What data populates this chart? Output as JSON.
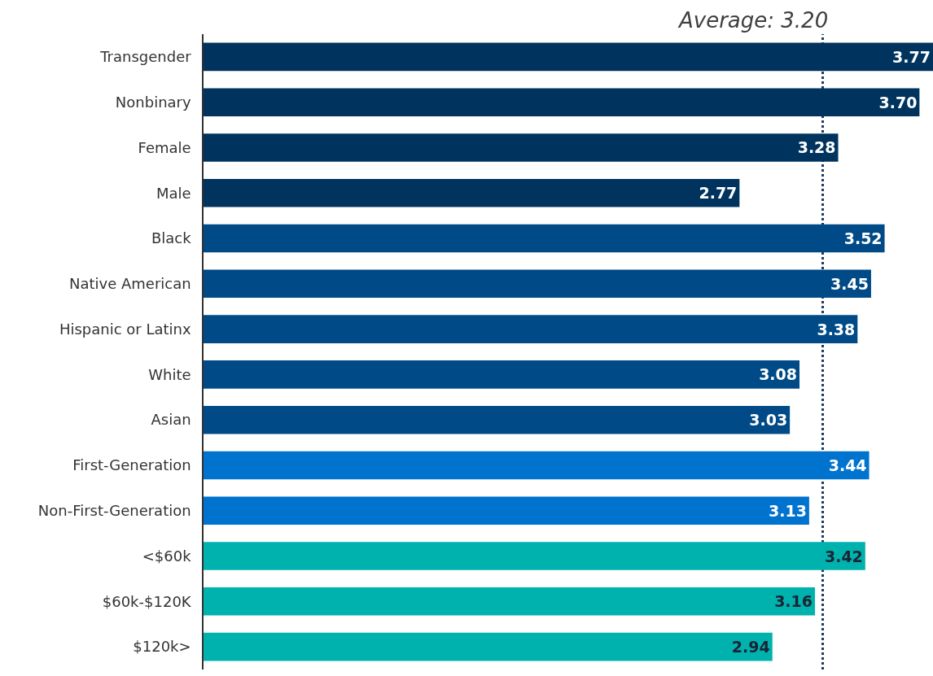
{
  "chart_data": {
    "type": "bar",
    "orientation": "horizontal",
    "value_labels": [
      "3.77",
      "3.70",
      "3.28",
      "2.77",
      "3.52",
      "3.45",
      "3.38",
      "3.08",
      "3.03",
      "3.44",
      "3.13",
      "3.42",
      "3.16",
      "2.94"
    ],
    "categories": [
      "Transgender",
      "Nonbinary",
      "Female",
      "Male",
      "Black",
      "Native American",
      "Hispanic or Latinx",
      "White",
      "Asian",
      "First-Generation",
      "Non-First-Generation",
      "<$60k",
      "$60k-$120K",
      "$120k>"
    ],
    "values": [
      3.77,
      3.7,
      3.28,
      2.77,
      3.52,
      3.45,
      3.38,
      3.08,
      3.03,
      3.44,
      3.13,
      3.42,
      3.16,
      2.94
    ],
    "colors": [
      "#00345f",
      "#00345f",
      "#00345f",
      "#00345f",
      "#004a87",
      "#004a87",
      "#004a87",
      "#004a87",
      "#004a87",
      "#0073cf",
      "#0073cf",
      "#00b2ae",
      "#00b2ae",
      "#00b2ae"
    ],
    "ref_lines": [
      {
        "axis": "x",
        "value": 3.2,
        "label": "Average: 3.20",
        "line_style": "dotted",
        "color": "#1d3a5e"
      }
    ]
  }
}
